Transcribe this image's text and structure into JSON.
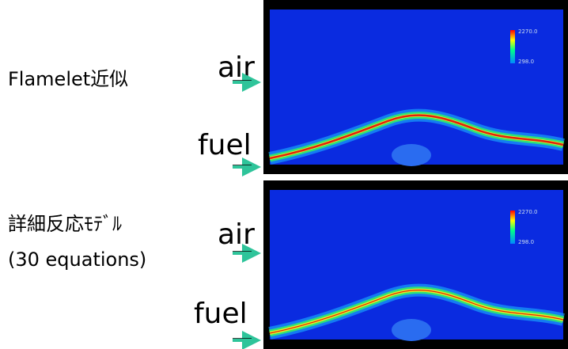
{
  "panels": [
    {
      "label": "Flamelet近似",
      "inlets": [
        "air",
        "fuel"
      ],
      "colorbar": {
        "max": "2270.0",
        "min": "298.0"
      }
    },
    {
      "label": "詳細反応ﾓﾃﾞﾙ",
      "sublabel": "(30 equations)",
      "inlets": [
        "air",
        "fuel"
      ],
      "colorbar": {
        "max": "2270.0",
        "min": "298.0"
      }
    }
  ]
}
